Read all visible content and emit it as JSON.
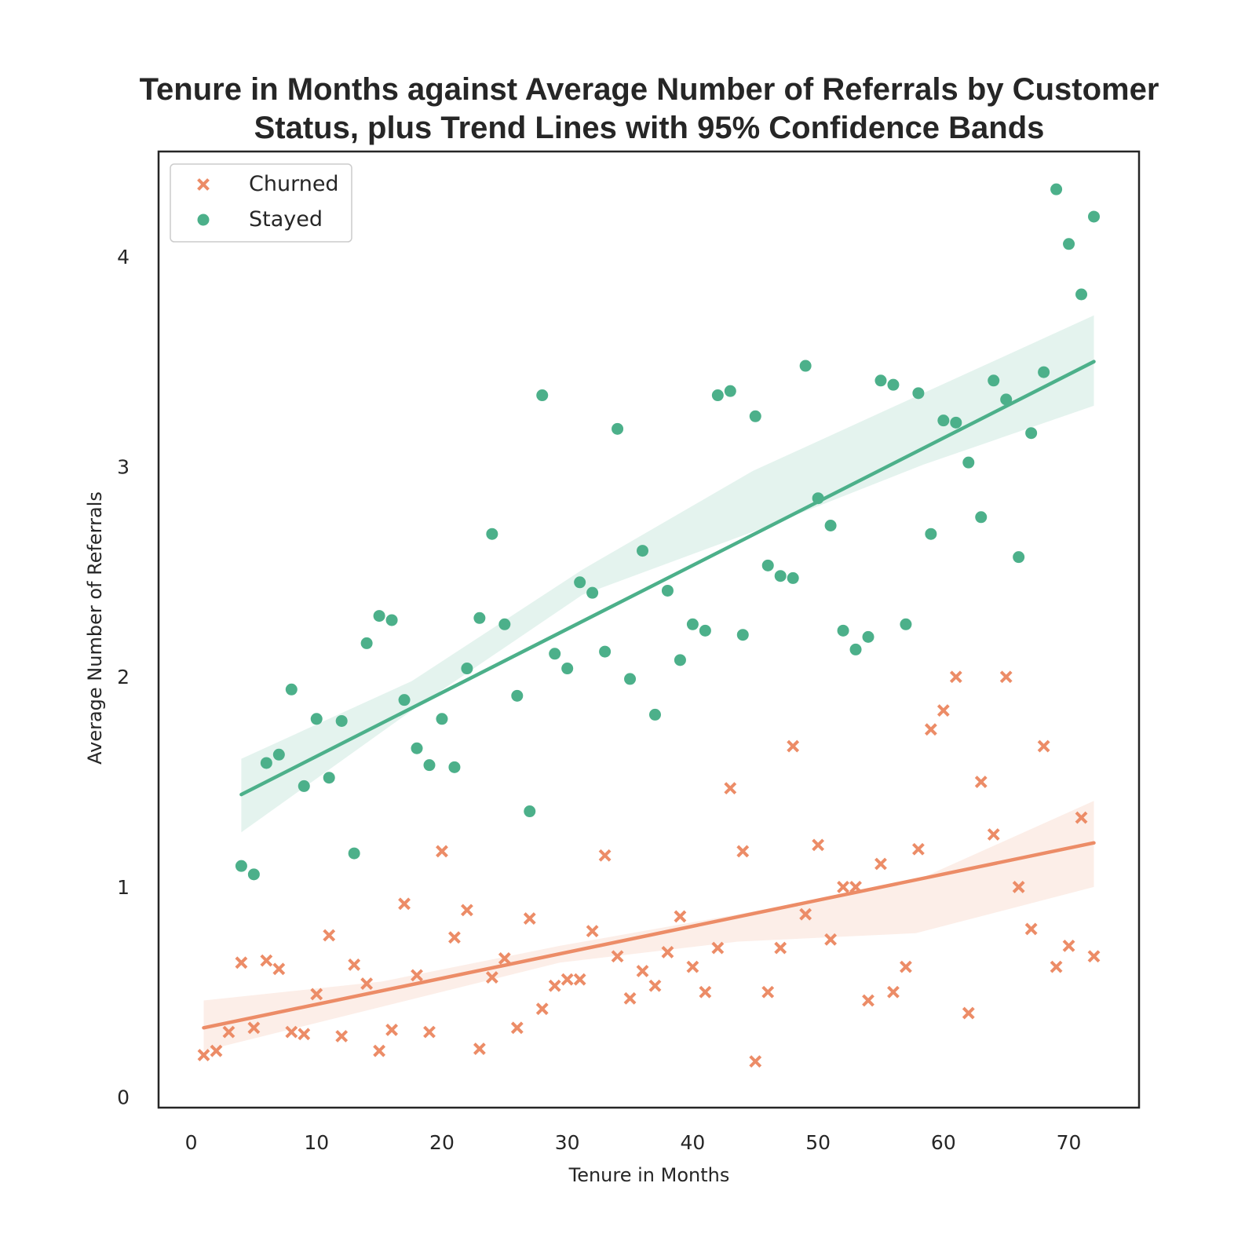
{
  "chart_data": {
    "type": "scatter",
    "title_lines": [
      "Tenure in Months against Average Number of Referrals by Customer",
      "Status, plus Trend Lines with 95% Confidence Bands"
    ],
    "xlabel": "Tenure in Months",
    "ylabel": "Average Number of Referrals",
    "xlim": [
      -2.6,
      75.6
    ],
    "ylim": [
      -0.05,
      4.5
    ],
    "x_ticks": [
      0,
      10,
      20,
      30,
      40,
      50,
      60,
      70
    ],
    "y_ticks": [
      0,
      1,
      2,
      3,
      4
    ],
    "grid": false,
    "legend_position": "top-left",
    "series": [
      {
        "name": "Churned",
        "color": "#ec8c67",
        "marker": "x",
        "x": [
          1,
          2,
          3,
          4,
          5,
          6,
          7,
          8,
          9,
          10,
          11,
          12,
          13,
          14,
          15,
          16,
          17,
          18,
          19,
          20,
          21,
          22,
          23,
          24,
          25,
          26,
          27,
          28,
          29,
          30,
          31,
          32,
          33,
          34,
          35,
          36,
          37,
          38,
          39,
          40,
          41,
          42,
          43,
          44,
          45,
          46,
          47,
          48,
          49,
          50,
          51,
          52,
          53,
          54,
          55,
          56,
          57,
          58,
          59,
          60,
          61,
          62,
          63,
          64,
          65,
          66,
          67,
          68,
          69,
          70,
          71,
          72
        ],
        "y": [
          0.2,
          0.22,
          0.31,
          0.64,
          0.33,
          0.65,
          0.61,
          0.31,
          0.3,
          0.49,
          0.77,
          0.29,
          0.63,
          0.54,
          0.22,
          0.32,
          0.92,
          0.58,
          0.31,
          1.17,
          0.76,
          0.89,
          0.23,
          0.57,
          0.66,
          0.33,
          0.85,
          0.42,
          0.53,
          0.56,
          0.56,
          0.79,
          1.15,
          0.67,
          0.47,
          0.6,
          0.53,
          0.69,
          0.86,
          0.62,
          0.5,
          0.71,
          1.47,
          1.17,
          0.17,
          0.5,
          0.71,
          1.67,
          0.87,
          1.2,
          0.75,
          1.0,
          1.0,
          0.46,
          1.11,
          0.5,
          0.62,
          1.18,
          1.75,
          1.84,
          2.0,
          0.4,
          1.5,
          1.25,
          2.0,
          1.0,
          0.8,
          1.67,
          0.62,
          0.72,
          1.33,
          0.67
        ],
        "trend": {
          "x": [
            1,
            72
          ],
          "y": [
            0.33,
            1.21
          ]
        },
        "ci_lower": [
          0.22,
          0.43,
          0.64,
          0.74,
          0.78,
          1.0
        ],
        "ci_upper": [
          0.46,
          0.55,
          0.72,
          0.87,
          1.03,
          1.41
        ]
      },
      {
        "name": "Stayed",
        "color": "#4cb08a",
        "marker": "o",
        "x": [
          4,
          5,
          6,
          7,
          8,
          9,
          10,
          11,
          12,
          13,
          14,
          15,
          16,
          17,
          18,
          19,
          20,
          21,
          22,
          23,
          24,
          25,
          26,
          27,
          28,
          29,
          30,
          31,
          32,
          33,
          34,
          35,
          36,
          37,
          38,
          39,
          40,
          41,
          42,
          43,
          44,
          45,
          46,
          47,
          48,
          49,
          50,
          51,
          52,
          53,
          54,
          55,
          56,
          57,
          58,
          59,
          60,
          61,
          62,
          63,
          64,
          65,
          66,
          67,
          68,
          69,
          70,
          71,
          72
        ],
        "y": [
          1.1,
          1.06,
          1.59,
          1.63,
          1.94,
          1.48,
          1.8,
          1.52,
          1.79,
          1.16,
          2.16,
          2.29,
          2.27,
          1.89,
          1.66,
          1.58,
          1.8,
          1.57,
          2.04,
          2.28,
          2.68,
          2.25,
          1.91,
          1.36,
          3.34,
          2.11,
          2.04,
          2.45,
          2.4,
          2.12,
          3.18,
          1.99,
          2.6,
          1.82,
          2.41,
          2.08,
          2.25,
          2.22,
          3.34,
          3.36,
          2.2,
          3.24,
          2.53,
          2.48,
          2.47,
          3.48,
          2.85,
          2.72,
          2.22,
          2.13,
          2.19,
          3.41,
          3.39,
          2.25,
          3.35,
          2.68,
          3.22,
          3.21,
          3.02,
          2.76,
          3.41,
          3.32,
          2.57,
          3.16,
          3.45,
          4.32,
          4.06,
          3.82,
          4.19
        ],
        "trend": {
          "x": [
            4,
            72
          ],
          "y": [
            1.44,
            3.5
          ]
        },
        "ci_lower": [
          1.26,
          1.84,
          2.39,
          2.69,
          3.01,
          3.29
        ],
        "ci_upper": [
          1.61,
          1.98,
          2.51,
          2.98,
          3.35,
          3.72
        ]
      }
    ]
  }
}
